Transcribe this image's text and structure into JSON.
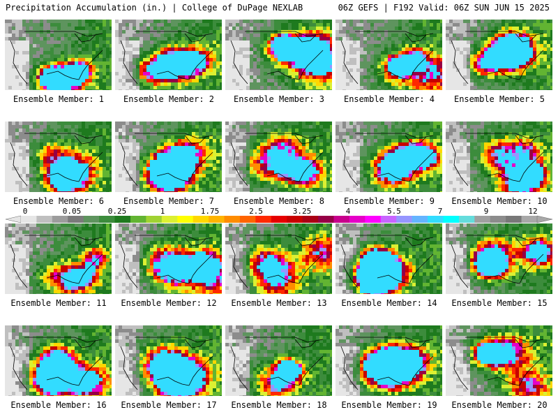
{
  "header": {
    "title_left": "Precipitation Accumulation (in.) | College of DuPage NEXLAB",
    "title_right": "06Z GEFS | F192 Valid: 06Z SUN JUN 15 2025"
  },
  "members": [
    "Ensemble Member: 1",
    "Ensemble Member: 2",
    "Ensemble Member: 3",
    "Ensemble Member: 4",
    "Ensemble Member: 5",
    "Ensemble Member: 6",
    "Ensemble Member: 7",
    "Ensemble Member: 8",
    "Ensemble Member: 9",
    "Ensemble Member: 10",
    "Ensemble Member: 11",
    "Ensemble Member: 12",
    "Ensemble Member: 13",
    "Ensemble Member: 14",
    "Ensemble Member: 15",
    "Ensemble Member: 16",
    "Ensemble Member: 17",
    "Ensemble Member: 18",
    "Ensemble Member: 19",
    "Ensemble Member: 20"
  ],
  "colorbar": {
    "tick_labels": [
      "0",
      "0.05",
      "0.25",
      "1",
      "1.75",
      "2.5",
      "3.25",
      "4",
      "5.5",
      "7",
      "9",
      "12"
    ],
    "colors": [
      "#e6e6e6",
      "#bfbfbf",
      "#9c9c9c",
      "#7a7a7a",
      "#5e945e",
      "#3c8c3c",
      "#1e7a1e",
      "#62b432",
      "#a0d232",
      "#dcf032",
      "#ffff00",
      "#ffd700",
      "#ffb400",
      "#ff8c00",
      "#ff6400",
      "#ff2800",
      "#e60000",
      "#c80000",
      "#aa0014",
      "#960046",
      "#c8008c",
      "#e600c8",
      "#ff00ff",
      "#c864ff",
      "#9696ff",
      "#64b4ff",
      "#32dcff",
      "#00ffff",
      "#64dcdc",
      "#a0a0a0",
      "#8c8c8c",
      "#787878",
      "#a8a8a8"
    ]
  }
}
